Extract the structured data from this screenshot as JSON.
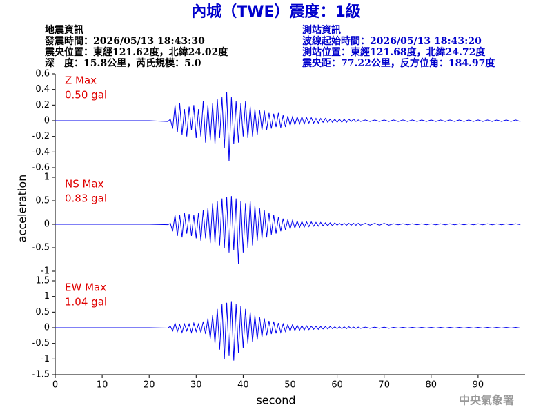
{
  "header": {
    "title": "內城（TWE）震度：1級",
    "quake_info": [
      "地震資訊",
      "發震時間：2026/05/13 18:43:30",
      "震央位置：東經121.62度，北緯24.02度",
      "深　度：15.8公里，芮氏規模：5.0"
    ],
    "station_info": [
      "測站資訊",
      "波線起始時間：2026/05/13 18:43:20",
      "測站位置：東經121.68度，北緯24.72度",
      "震央距：77.22公里，反方位角：184.97度"
    ],
    "watermark": "中央氣象署"
  },
  "chart_data": {
    "type": "line",
    "xlabel": "second",
    "ylabel": "acceleration",
    "xlim": [
      0,
      100
    ],
    "xticks": [
      0,
      10,
      20,
      30,
      40,
      50,
      60,
      70,
      80,
      90
    ],
    "x": [
      0,
      5,
      10,
      15,
      20,
      24,
      24.5,
      25,
      25.5,
      26,
      26.5,
      27,
      27.5,
      28,
      28.5,
      29,
      29.5,
      30,
      30.5,
      31,
      31.5,
      32,
      32.5,
      33,
      33.5,
      34,
      34.5,
      35,
      35.5,
      36,
      36.5,
      37,
      37.5,
      38,
      38.5,
      39,
      39.5,
      40,
      40.5,
      41,
      41.5,
      42,
      42.5,
      43,
      43.5,
      44,
      44.5,
      45,
      45.5,
      46,
      46.5,
      47,
      47.5,
      48,
      48.5,
      49,
      49.5,
      50,
      50.5,
      51,
      51.5,
      52,
      52.5,
      53,
      53.5,
      54,
      54.5,
      55,
      55.5,
      56,
      56.5,
      57,
      57.5,
      58,
      58.5,
      59,
      59.5,
      60,
      60.5,
      61,
      61.5,
      62,
      62.5,
      63,
      63.5,
      64,
      64.5,
      65,
      66,
      67,
      68,
      69,
      70,
      71,
      72,
      73,
      74,
      75,
      76,
      77,
      78,
      79,
      80,
      81,
      82,
      83,
      84,
      85,
      86,
      87,
      88,
      89,
      90,
      91,
      92,
      93,
      94,
      95,
      96,
      97,
      98,
      99
    ],
    "series": [
      {
        "name": "Z Max",
        "annotation": "0.50 gal",
        "color": "#0000ee",
        "ylim": [
          -0.6,
          0.6
        ],
        "yticks": [
          -0.6,
          -0.4,
          -0.2,
          0,
          0.2,
          0.4,
          0.6
        ],
        "values": [
          0,
          0,
          0,
          0,
          0,
          -0.01,
          0.02,
          -0.1,
          0.2,
          -0.15,
          0.22,
          -0.18,
          0.15,
          -0.2,
          0.18,
          -0.12,
          0.2,
          -0.22,
          0.15,
          -0.2,
          0.25,
          -0.28,
          0.2,
          -0.25,
          0.22,
          -0.3,
          0.28,
          -0.22,
          0.3,
          -0.35,
          0.37,
          -0.52,
          0.3,
          -0.3,
          0.25,
          -0.28,
          0.22,
          -0.2,
          0.25,
          -0.22,
          0.18,
          -0.2,
          0.15,
          -0.18,
          0.14,
          -0.12,
          0.13,
          -0.12,
          0.1,
          -0.1,
          0.09,
          -0.08,
          0.1,
          -0.09,
          0.07,
          -0.08,
          0.06,
          -0.06,
          0.05,
          -0.05,
          0.05,
          -0.04,
          0.05,
          -0.04,
          0.04,
          -0.03,
          0.04,
          -0.03,
          0.03,
          -0.03,
          0.03,
          -0.02,
          0.03,
          -0.02,
          0.02,
          -0.02,
          0.02,
          -0.02,
          0.02,
          -0.02,
          0.02,
          -0.02,
          0.02,
          -0.01,
          0.02,
          -0.01,
          0.01,
          -0.01,
          0.01,
          -0.01,
          0.01,
          -0.01,
          0.01,
          -0.01,
          0.01,
          -0.01,
          0.01,
          -0.01,
          0.01,
          -0.01,
          0.01,
          -0.01,
          0.01,
          -0.01,
          0.01,
          -0.01,
          0.01,
          -0.01,
          0.01,
          -0.01,
          0.01,
          -0.01,
          0.01,
          -0.01,
          0.01,
          -0.01,
          0.01,
          -0.01,
          0.01,
          -0.01,
          0.01,
          -0.01
        ]
      },
      {
        "name": "NS Max",
        "annotation": "0.83 gal",
        "color": "#0000ee",
        "ylim": [
          -1,
          1
        ],
        "yticks": [
          -1,
          -0.5,
          0,
          0.5,
          1
        ],
        "values": [
          0,
          0,
          0,
          0,
          0,
          -0.01,
          0.02,
          -0.15,
          0.2,
          -0.25,
          0.2,
          -0.28,
          0.25,
          -0.2,
          0.22,
          -0.25,
          0.2,
          -0.3,
          0.25,
          -0.35,
          0.3,
          -0.3,
          0.35,
          -0.4,
          0.45,
          -0.4,
          0.5,
          -0.45,
          0.55,
          -0.5,
          0.58,
          -0.6,
          0.6,
          -0.55,
          0.55,
          -0.85,
          0.5,
          -0.6,
          0.45,
          -0.5,
          0.5,
          -0.45,
          0.4,
          -0.35,
          0.35,
          -0.3,
          0.3,
          -0.28,
          0.25,
          -0.22,
          0.2,
          -0.2,
          0.15,
          -0.15,
          0.12,
          -0.12,
          0.1,
          -0.1,
          0.08,
          -0.08,
          0.07,
          -0.07,
          0.06,
          -0.06,
          0.05,
          -0.05,
          0.05,
          -0.04,
          0.04,
          -0.04,
          0.04,
          -0.03,
          0.03,
          -0.03,
          0.03,
          -0.03,
          0.03,
          -0.02,
          0.02,
          -0.02,
          0.02,
          -0.02,
          0.02,
          -0.02,
          0.02,
          -0.02,
          0.02,
          -0.02,
          0.02,
          -0.02,
          0.02,
          -0.02,
          0.02,
          -0.02,
          0.01,
          -0.01,
          0.01,
          -0.01,
          0.01,
          -0.01,
          0.01,
          -0.01,
          0.01,
          -0.01,
          0.01,
          -0.01,
          0.01,
          -0.01,
          0.01,
          -0.01,
          0.01,
          -0.01,
          0.01,
          -0.01,
          0.01,
          -0.01,
          0.01,
          -0.01,
          0.01,
          -0.01,
          0.01,
          -0.01
        ]
      },
      {
        "name": "EW Max",
        "annotation": "1.04 gal",
        "color": "#0000ee",
        "ylim": [
          -1.5,
          1.5
        ],
        "yticks": [
          -1.5,
          -1,
          -0.5,
          0,
          0.5,
          1,
          1.5
        ],
        "values": [
          0,
          0,
          0,
          0,
          0,
          -0.01,
          0.05,
          -0.1,
          0.15,
          -0.12,
          0.1,
          -0.15,
          0.12,
          -0.1,
          0.12,
          -0.15,
          0.15,
          -0.12,
          0.12,
          -0.15,
          0.2,
          -0.2,
          0.3,
          -0.35,
          0.4,
          -0.5,
          0.6,
          -0.7,
          0.75,
          -1.0,
          0.8,
          -0.9,
          0.85,
          -1.05,
          0.75,
          -0.8,
          0.7,
          -0.65,
          0.6,
          -0.5,
          0.5,
          -0.45,
          0.4,
          -0.38,
          0.35,
          -0.3,
          0.3,
          -0.25,
          0.22,
          -0.2,
          0.2,
          -0.18,
          0.15,
          -0.15,
          0.12,
          -0.12,
          0.1,
          -0.1,
          0.1,
          -0.09,
          0.08,
          -0.08,
          0.07,
          -0.07,
          0.06,
          -0.06,
          0.05,
          -0.05,
          0.05,
          -0.05,
          0.04,
          -0.04,
          0.04,
          -0.04,
          0.04,
          -0.03,
          0.03,
          -0.03,
          0.03,
          -0.03,
          0.03,
          -0.03,
          0.03,
          -0.02,
          0.02,
          -0.02,
          0.02,
          -0.02,
          0.02,
          -0.02,
          0.02,
          -0.02,
          0.02,
          -0.02,
          0.01,
          -0.01,
          0.01,
          -0.01,
          0.01,
          -0.01,
          0.01,
          -0.01,
          0.01,
          -0.01,
          0.01,
          -0.01,
          0.01,
          -0.01,
          0.01,
          -0.01,
          0.01,
          -0.01,
          0.01,
          -0.01,
          0.01,
          -0.01,
          0.01,
          -0.01,
          0.01,
          -0.01,
          0.01,
          -0.01
        ]
      }
    ]
  }
}
